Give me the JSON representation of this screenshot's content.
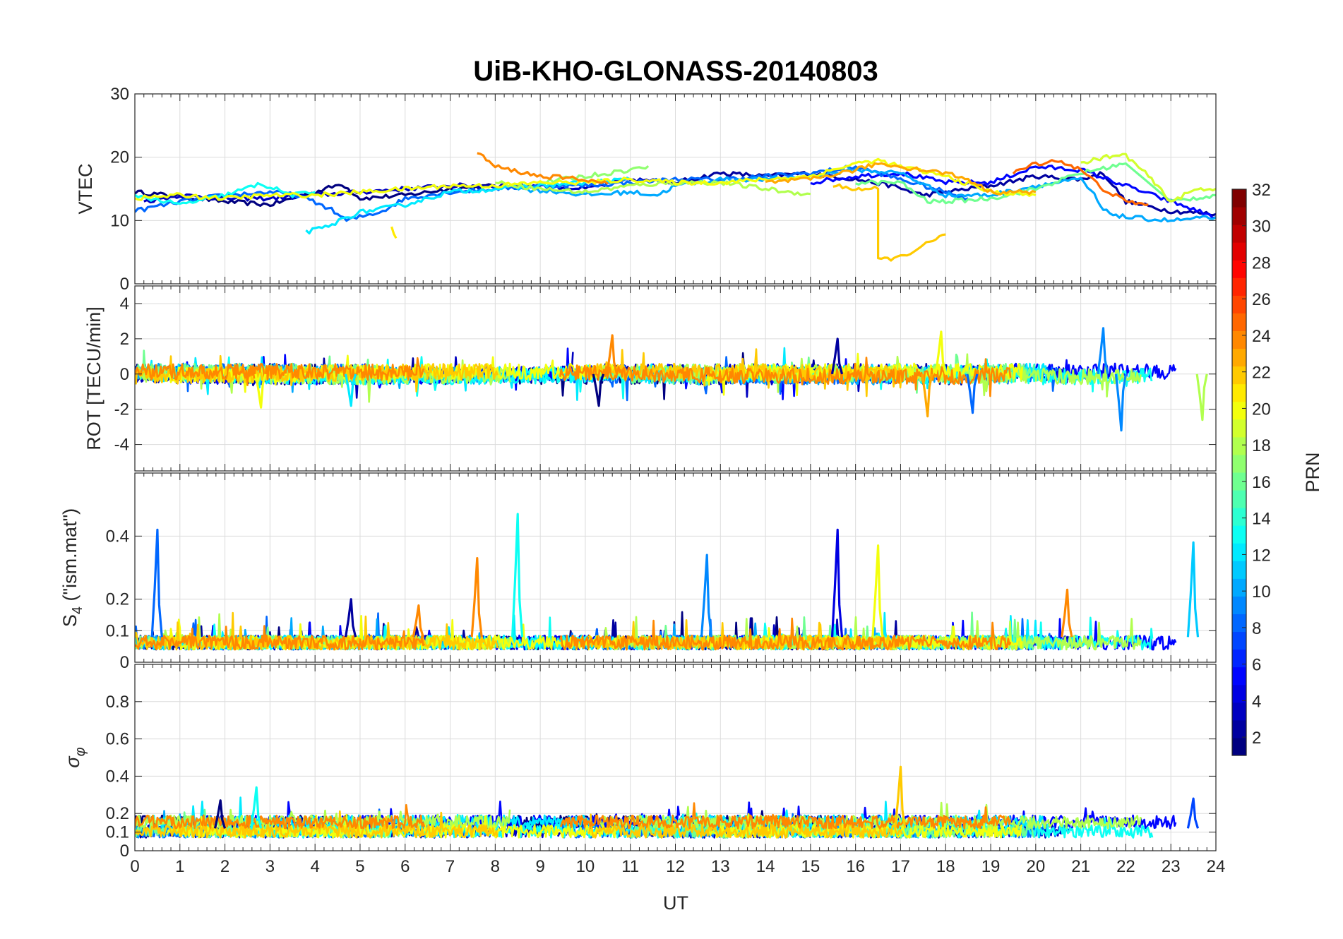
{
  "colors": {
    "background": "#ffffff",
    "axis": "#262626",
    "grid": "#dcdcdc"
  },
  "chart_data": {
    "type": "line",
    "title": "UiB-KHO-GLONASS-20140803",
    "xlabel": "UT",
    "xlim": [
      0,
      24
    ],
    "xticks": [
      "0",
      "1",
      "2",
      "3",
      "4",
      "5",
      "6",
      "7",
      "8",
      "9",
      "10",
      "11",
      "12",
      "13",
      "14",
      "15",
      "16",
      "17",
      "18",
      "19",
      "20",
      "21",
      "22",
      "23",
      "24"
    ],
    "grid": true,
    "colormap": "jet",
    "colorbar": {
      "label": "PRN",
      "range": [
        1,
        32
      ],
      "ticks": [
        "2",
        "4",
        "6",
        "8",
        "10",
        "12",
        "14",
        "16",
        "18",
        "20",
        "22",
        "24",
        "26",
        "28",
        "30",
        "32"
      ],
      "position": "right"
    },
    "panels": [
      {
        "id": "vtec",
        "ylabel": "VTEC",
        "ylim": [
          0,
          30
        ],
        "yticks": [
          "0",
          "10",
          "20",
          "30"
        ],
        "tracks": [
          {
            "prn": 1,
            "points": [
              [
                0,
                14.5
              ],
              [
                1,
                13.8
              ],
              [
                2,
                13
              ],
              [
                3,
                12.5
              ],
              [
                4,
                14.5
              ],
              [
                4.6,
                15.8
              ],
              [
                5,
                13.5
              ],
              [
                6,
                14
              ],
              [
                7,
                15
              ],
              [
                8,
                15.5
              ]
            ]
          },
          {
            "prn": 2,
            "points": [
              [
                12,
                16
              ],
              [
                13,
                17.5
              ],
              [
                14,
                17
              ],
              [
                15,
                17.5
              ],
              [
                16,
                16.5
              ],
              [
                16.8,
                15.5
              ],
              [
                17.5,
                14
              ],
              [
                18,
                14.5
              ],
              [
                19,
                15.5
              ],
              [
                20,
                17
              ],
              [
                21,
                16.5
              ],
              [
                21.5,
                17.5
              ],
              [
                22,
                13
              ],
              [
                23,
                11.5
              ],
              [
                24,
                11
              ]
            ]
          },
          {
            "prn": 3,
            "points": [
              [
                0.2,
                13
              ],
              [
                1,
                14
              ],
              [
                2,
                13.5
              ],
              [
                3,
                13.5
              ],
              [
                4,
                14
              ],
              [
                5,
                14.5
              ],
              [
                6,
                15
              ],
              [
                7,
                15.5
              ],
              [
                9,
                15.5
              ],
              [
                10,
                15
              ],
              [
                11,
                16.5
              ],
              [
                12,
                16
              ]
            ]
          },
          {
            "prn": 5,
            "points": [
              [
                15,
                16
              ],
              [
                16,
                17
              ],
              [
                17,
                17.5
              ],
              [
                18,
                16
              ],
              [
                19,
                16
              ],
              [
                20,
                18.5
              ],
              [
                21,
                18
              ],
              [
                22,
                15.5
              ],
              [
                23,
                13
              ],
              [
                24,
                10.5
              ]
            ]
          },
          {
            "prn": 8,
            "points": [
              [
                0,
                11.5
              ],
              [
                1,
                13
              ],
              [
                2,
                14
              ],
              [
                3,
                14.5
              ],
              [
                3.6,
                14
              ],
              [
                4.3,
                12
              ],
              [
                4.7,
                10
              ],
              [
                5.5,
                11.5
              ],
              [
                6,
                13.5
              ],
              [
                7,
                14.5
              ],
              [
                8,
                15
              ],
              [
                9,
                15.5
              ],
              [
                10,
                15.5
              ],
              [
                11,
                16
              ],
              [
                12,
                16.5
              ],
              [
                13,
                16.5
              ],
              [
                14,
                17
              ],
              [
                15,
                17.5
              ],
              [
                16,
                18.5
              ],
              [
                17,
                16.5
              ],
              [
                18,
                14.5
              ],
              [
                18.5,
                13.5
              ]
            ]
          },
          {
            "prn": 10,
            "points": [
              [
                8.5,
                15
              ],
              [
                9.5,
                14.5
              ],
              [
                10,
                14
              ],
              [
                11,
                14.5
              ],
              [
                11.6,
                14
              ],
              [
                12,
                15.5
              ],
              [
                13,
                16.5
              ],
              [
                14,
                16.5
              ],
              [
                15,
                17
              ],
              [
                16,
                18
              ],
              [
                17,
                17.5
              ],
              [
                18,
                14
              ],
              [
                19,
                14
              ],
              [
                20,
                15.5
              ],
              [
                21,
                16.5
              ],
              [
                21.3,
                14
              ],
              [
                21.5,
                11.5
              ],
              [
                22,
                10.5
              ],
              [
                23,
                10
              ],
              [
                24,
                10.5
              ]
            ]
          },
          {
            "prn": 12,
            "points": [
              [
                3.8,
                8.2
              ],
              [
                4.3,
                9
              ],
              [
                4.6,
                10.2
              ],
              [
                5,
                11.3
              ],
              [
                6,
                12.5
              ],
              [
                7,
                14.5
              ],
              [
                8,
                15
              ],
              [
                9,
                15.5
              ],
              [
                10,
                16
              ],
              [
                11,
                16.5
              ]
            ]
          },
          {
            "prn": 13,
            "points": [
              [
                0,
                14
              ],
              [
                1,
                12.5
              ],
              [
                2,
                14
              ],
              [
                2.8,
                15.8
              ],
              [
                3.5,
                14
              ],
              [
                4,
                14.5
              ]
            ]
          },
          {
            "prn": 16,
            "points": [
              [
                16,
                16
              ],
              [
                17,
                16
              ],
              [
                17.6,
                13
              ],
              [
                18,
                13
              ],
              [
                19,
                13.5
              ],
              [
                20,
                15
              ],
              [
                21,
                17.5
              ],
              [
                22,
                19
              ],
              [
                23,
                13
              ],
              [
                24,
                14
              ]
            ]
          },
          {
            "prn": 17,
            "points": [
              [
                9,
                16
              ],
              [
                10,
                17
              ],
              [
                11,
                18
              ],
              [
                11.4,
                18.6
              ]
            ]
          },
          {
            "prn": 18,
            "points": [
              [
                8,
                16
              ],
              [
                9,
                15
              ],
              [
                10,
                14.5
              ],
              [
                10.5,
                15
              ],
              [
                11,
                15.5
              ],
              [
                12,
                16
              ],
              [
                13,
                16
              ],
              [
                14,
                15
              ],
              [
                14.5,
                14.5
              ],
              [
                15,
                14.2
              ]
            ]
          },
          {
            "prn": 19,
            "points": [
              [
                21,
                19
              ],
              [
                21.5,
                20
              ],
              [
                22,
                20.3
              ],
              [
                22.5,
                17
              ],
              [
                23,
                13
              ],
              [
                23.6,
                15
              ],
              [
                24,
                15
              ]
            ]
          },
          {
            "prn": 20,
            "points": [
              [
                0,
                13.5
              ],
              [
                1,
                14
              ],
              [
                2,
                13.5
              ],
              [
                3,
                14
              ],
              [
                4,
                14
              ],
              [
                5,
                14.5
              ],
              [
                6,
                15
              ],
              [
                7,
                15.5
              ],
              [
                8,
                15.5
              ],
              [
                9,
                16
              ],
              [
                10,
                16
              ],
              [
                11,
                16.5
              ],
              [
                12,
                16
              ],
              [
                13,
                16
              ],
              [
                14,
                16.5
              ],
              [
                15,
                17
              ],
              [
                16,
                19
              ],
              [
                16.5,
                19.5
              ],
              [
                17,
                18.5
              ],
              [
                18,
                17
              ],
              [
                19,
                14.5
              ],
              [
                20,
                14
              ]
            ]
          },
          {
            "prn": 21,
            "points": [
              [
                5.7,
                8.9
              ],
              [
                5.8,
                7.2
              ]
            ]
          },
          {
            "prn": 22,
            "points": [
              [
                15.5,
                15.5
              ],
              [
                16,
                15
              ],
              [
                16.5,
                15
              ],
              [
                16.5,
                3.8
              ],
              [
                17,
                4.2
              ],
              [
                17.5,
                6
              ],
              [
                18,
                7.8
              ]
            ]
          },
          {
            "prn": 23,
            "points": [
              [
                14,
                16
              ],
              [
                15,
                16.5
              ],
              [
                16,
                18
              ],
              [
                16.5,
                19
              ],
              [
                17,
                18.5
              ],
              [
                18,
                17.5
              ],
              [
                18.5,
                16.5
              ],
              [
                19,
                14.5
              ],
              [
                20,
                14.5
              ]
            ]
          },
          {
            "prn": 24,
            "points": [
              [
                7.6,
                20.8
              ],
              [
                8,
                18.5
              ],
              [
                9,
                17
              ],
              [
                10,
                16.5
              ],
              [
                10.5,
                15.8
              ]
            ]
          },
          {
            "prn": 25,
            "points": [
              [
                19.5,
                17.5
              ],
              [
                20,
                19
              ],
              [
                20.5,
                19.5
              ],
              [
                21,
                18
              ],
              [
                21.5,
                15
              ],
              [
                22,
                13
              ],
              [
                22.5,
                12.5
              ]
            ]
          }
        ]
      },
      {
        "id": "rot",
        "ylabel": "ROT [TECU/min]",
        "ylim": [
          -5.5,
          5
        ],
        "yticks": [
          "-4",
          "-2",
          "0",
          "2",
          "4"
        ],
        "spikes": [
          {
            "prn": 2,
            "x": 15.6,
            "y": 2
          },
          {
            "prn": 20,
            "x": 17.9,
            "y": 2.4
          },
          {
            "prn": 9,
            "x": 21.5,
            "y": 2.6
          },
          {
            "prn": 9,
            "x": 21.9,
            "y": -3.2
          },
          {
            "prn": 18,
            "x": 23.7,
            "y": -2.6
          },
          {
            "prn": 23,
            "x": 17.6,
            "y": -2.4
          },
          {
            "prn": 24,
            "x": 10.6,
            "y": 2.2
          },
          {
            "prn": 1,
            "x": 10.3,
            "y": -1.8
          },
          {
            "prn": 20,
            "x": 2.8,
            "y": -1.9
          },
          {
            "prn": 12,
            "x": 4.8,
            "y": -1.8
          },
          {
            "prn": 8,
            "x": 18.6,
            "y": -2.2
          }
        ]
      },
      {
        "id": "s4",
        "ylabel": "S4 (\"ism.mat\")",
        "ylim": [
          0,
          0.6
        ],
        "yticks": [
          "0",
          "0.1",
          "0.2",
          "0.4"
        ],
        "spikes": [
          {
            "prn": 8,
            "x": 0.5,
            "y": 0.42
          },
          {
            "prn": 13,
            "x": 8.5,
            "y": 0.47
          },
          {
            "prn": 24,
            "x": 7.6,
            "y": 0.33
          },
          {
            "prn": 9,
            "x": 12.7,
            "y": 0.34
          },
          {
            "prn": 4,
            "x": 15.6,
            "y": 0.42
          },
          {
            "prn": 20,
            "x": 16.5,
            "y": 0.37
          },
          {
            "prn": 11,
            "x": 23.5,
            "y": 0.38
          },
          {
            "prn": 24,
            "x": 20.7,
            "y": 0.23
          },
          {
            "prn": 2,
            "x": 4.8,
            "y": 0.2
          },
          {
            "prn": 24,
            "x": 6.3,
            "y": 0.18
          }
        ]
      },
      {
        "id": "sigma",
        "ylabel": "σφ",
        "ylim": [
          0,
          1
        ],
        "yticks": [
          "0",
          "0.1",
          "0.2",
          "0.4",
          "0.6",
          "0.8"
        ],
        "spikes": [
          {
            "prn": 13,
            "x": 2.7,
            "y": 0.34
          },
          {
            "prn": 22,
            "x": 17,
            "y": 0.45
          },
          {
            "prn": 1,
            "x": 1.9,
            "y": 0.27
          },
          {
            "prn": 7,
            "x": 23.5,
            "y": 0.28
          }
        ]
      }
    ]
  }
}
